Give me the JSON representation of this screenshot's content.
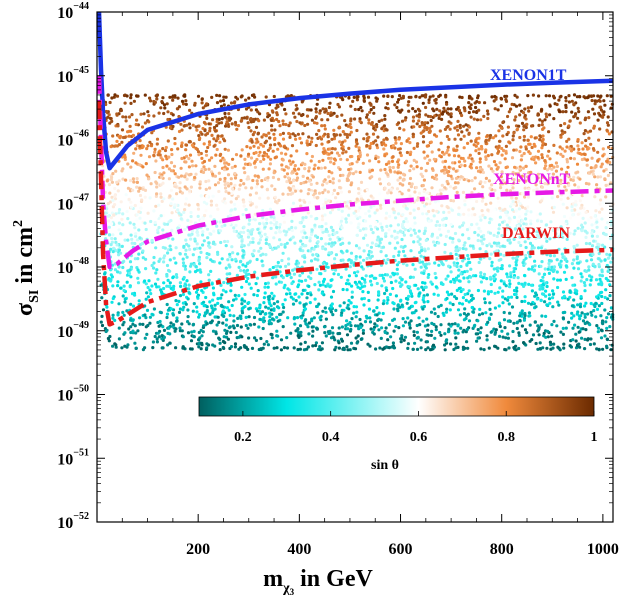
{
  "chart_data": {
    "type": "scatter",
    "title": "",
    "xlabel": {
      "main": "m",
      "sub": "χ",
      "subsub": "3",
      "tail": " in GeV"
    },
    "ylabel": {
      "main": "σ",
      "sub": "SI",
      "tail": " in cm",
      "sup": "2"
    },
    "xlim": [
      0,
      1020
    ],
    "ylim_log10": [
      -52,
      -44
    ],
    "y_scale": "log",
    "x_ticks": [
      200,
      400,
      600,
      800,
      1000
    ],
    "x_tick_labels": [
      "200",
      "400",
      "600",
      "800",
      "1000"
    ],
    "y_tick_exponents": [
      -44,
      -45,
      -46,
      -47,
      -48,
      -49,
      -50,
      -51,
      -52
    ],
    "y_tick_labels": [
      {
        "base": "10",
        "exp": "−44"
      },
      {
        "base": "10",
        "exp": "−45"
      },
      {
        "base": "10",
        "exp": "−46"
      },
      {
        "base": "10",
        "exp": "−47"
      },
      {
        "base": "10",
        "exp": "−48"
      },
      {
        "base": "10",
        "exp": "−49"
      },
      {
        "base": "10",
        "exp": "−50"
      },
      {
        "base": "10",
        "exp": "−51"
      },
      {
        "base": "10",
        "exp": "−52"
      }
    ],
    "grid": false,
    "scatter_region": {
      "x_range": [
        0,
        1020
      ],
      "log10_sigma_lower_edge": -49.3,
      "log10_sigma_upper_edge": -45.3,
      "color_by": "sin θ",
      "color_range": [
        0.1,
        1.0
      ]
    },
    "colorbar": {
      "label": "sin θ",
      "ticks": [
        "0.2",
        "0.4",
        "0.6",
        "0.8",
        "1"
      ],
      "tick_values": [
        0.2,
        0.4,
        0.6,
        0.8,
        1.0
      ],
      "range": [
        0.1,
        1.0
      ],
      "placement": "bottom-center",
      "stops": [
        {
          "value": 0.1,
          "color": "#005f5f"
        },
        {
          "value": 0.3,
          "color": "#00e6e6"
        },
        {
          "value": 0.6,
          "color": "#ffffff"
        },
        {
          "value": 0.8,
          "color": "#f08a3c"
        },
        {
          "value": 1.0,
          "color": "#6b2a00"
        }
      ]
    },
    "series": [
      {
        "name": "XENON1T",
        "color": "#1a33e6",
        "style": "solid",
        "points": [
          [
            4,
            -44.0
          ],
          [
            8,
            -44.9
          ],
          [
            12,
            -45.6
          ],
          [
            18,
            -46.2
          ],
          [
            25,
            -46.45
          ],
          [
            35,
            -46.35
          ],
          [
            60,
            -46.1
          ],
          [
            100,
            -45.85
          ],
          [
            200,
            -45.6
          ],
          [
            300,
            -45.45
          ],
          [
            400,
            -45.35
          ],
          [
            500,
            -45.28
          ],
          [
            600,
            -45.22
          ],
          [
            700,
            -45.18
          ],
          [
            800,
            -45.14
          ],
          [
            900,
            -45.11
          ],
          [
            1020,
            -45.08
          ]
        ]
      },
      {
        "name": "XENONnT",
        "color": "#e619e6",
        "style": "dashdot",
        "points": [
          [
            4,
            -45.0
          ],
          [
            8,
            -46.0
          ],
          [
            12,
            -47.0
          ],
          [
            18,
            -47.6
          ],
          [
            25,
            -48.0
          ],
          [
            40,
            -47.95
          ],
          [
            70,
            -47.75
          ],
          [
            100,
            -47.6
          ],
          [
            200,
            -47.35
          ],
          [
            300,
            -47.2
          ],
          [
            400,
            -47.1
          ],
          [
            500,
            -47.02
          ],
          [
            600,
            -46.96
          ],
          [
            700,
            -46.9
          ],
          [
            800,
            -46.86
          ],
          [
            900,
            -46.83
          ],
          [
            1020,
            -46.8
          ]
        ]
      },
      {
        "name": "DARWIN",
        "color": "#e61a1a",
        "style": "dashdot",
        "points": [
          [
            4,
            -45.4
          ],
          [
            8,
            -46.6
          ],
          [
            12,
            -47.8
          ],
          [
            18,
            -48.6
          ],
          [
            25,
            -48.9
          ],
          [
            40,
            -48.85
          ],
          [
            70,
            -48.7
          ],
          [
            100,
            -48.55
          ],
          [
            200,
            -48.3
          ],
          [
            300,
            -48.15
          ],
          [
            400,
            -48.05
          ],
          [
            500,
            -47.97
          ],
          [
            600,
            -47.9
          ],
          [
            700,
            -47.85
          ],
          [
            800,
            -47.8
          ],
          [
            900,
            -47.76
          ],
          [
            1020,
            -47.73
          ]
        ]
      }
    ]
  },
  "labels": {
    "xenon1t": "XENON1T",
    "xenonnt": "XENONnT",
    "darwin": "DARWIN"
  }
}
